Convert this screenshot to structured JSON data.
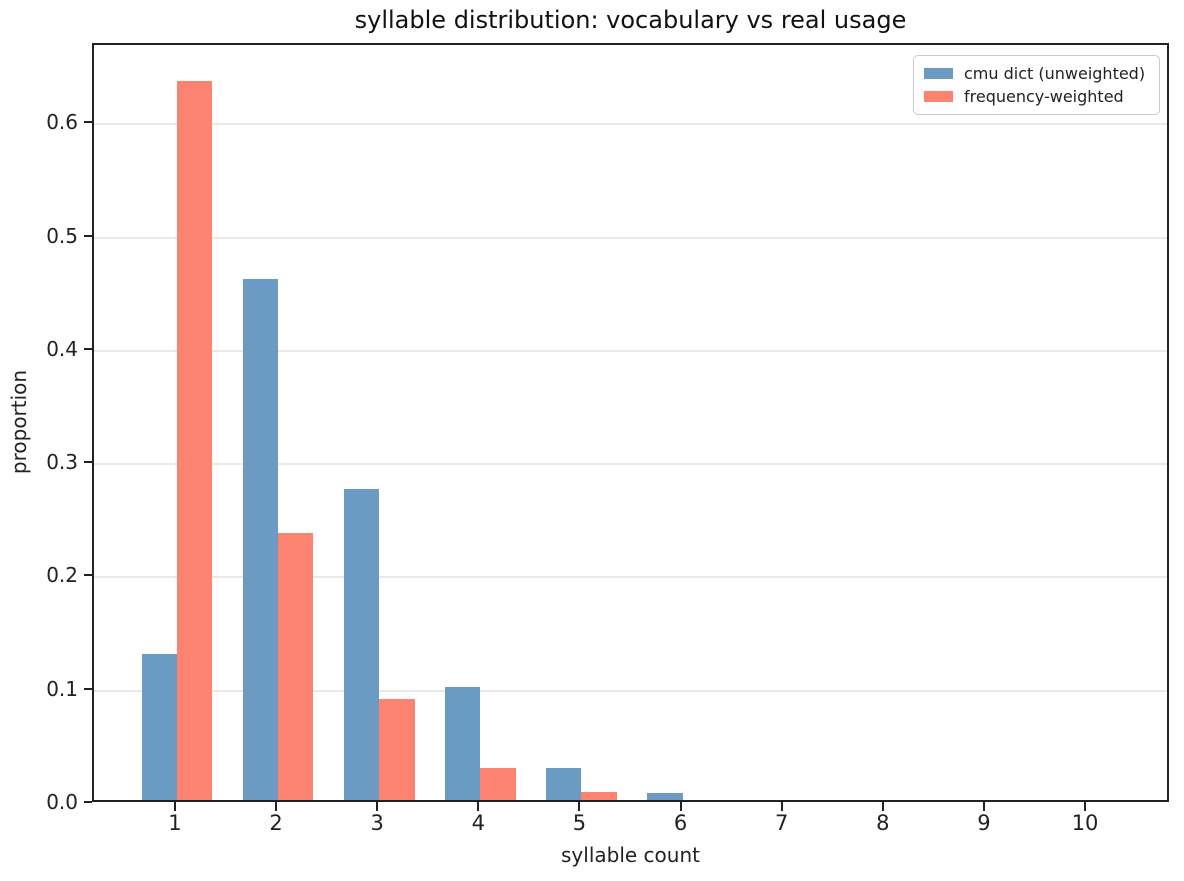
{
  "chart_data": {
    "type": "bar",
    "title": "syllable distribution: vocabulary vs real usage",
    "xlabel": "syllable count",
    "ylabel": "proportion",
    "categories": [
      1,
      2,
      3,
      4,
      5,
      6,
      7,
      8,
      9,
      10
    ],
    "series": [
      {
        "name": "cmu dict (unweighted)",
        "color": "#6b9ac3",
        "values": [
          0.129,
          0.46,
          0.275,
          0.1,
          0.028,
          0.006,
          0,
          0,
          0,
          0
        ]
      },
      {
        "name": "frequency-weighted",
        "color": "#fc8370",
        "values": [
          0.635,
          0.236,
          0.089,
          0.028,
          0.007,
          0,
          0,
          0,
          0,
          0
        ]
      }
    ],
    "x_tick_labels": [
      "1",
      "2",
      "3",
      "4",
      "5",
      "6",
      "7",
      "8",
      "9",
      "10"
    ],
    "y_ticks": [
      0.0,
      0.1,
      0.2,
      0.3,
      0.4,
      0.5,
      0.6
    ],
    "y_tick_labels": [
      "0.0",
      "0.1",
      "0.2",
      "0.3",
      "0.4",
      "0.5",
      "0.6"
    ],
    "ylim": [
      0,
      0.67
    ],
    "xlim": [
      0.18,
      10.83
    ],
    "bar_width": 0.35,
    "grid": "horizontal-only",
    "grid_color": "#e9e9e9",
    "legend_position": "upper-right"
  }
}
